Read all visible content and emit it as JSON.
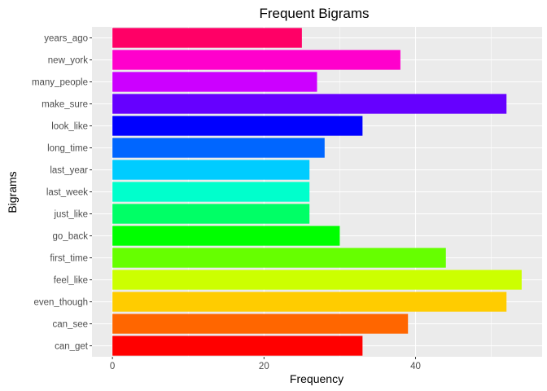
{
  "chart_data": {
    "type": "bar",
    "orientation": "horizontal",
    "title": "Frequent Bigrams",
    "xlabel": "Frequency",
    "ylabel": "Bigrams",
    "xlim": [
      -2.7,
      56.7
    ],
    "xticks": [
      0,
      20,
      40
    ],
    "xtick_labels": [
      "0",
      "20",
      "40"
    ],
    "grid": true,
    "legend": "none",
    "categories": [
      "can_get",
      "can_see",
      "even_though",
      "feel_like",
      "first_time",
      "go_back",
      "just_like",
      "last_week",
      "last_year",
      "long_time",
      "look_like",
      "make_sure",
      "many_people",
      "new_york",
      "years_ago"
    ],
    "values": [
      33,
      39,
      52,
      54,
      44,
      30,
      26,
      26,
      26,
      28,
      33,
      52,
      27,
      38,
      25
    ],
    "colors": [
      "#FF0000",
      "#FF6600",
      "#FFCC00",
      "#CCFF00",
      "#66FF00",
      "#00FF00",
      "#00FF66",
      "#00FFCC",
      "#00CCFF",
      "#0066FF",
      "#0000FF",
      "#6600FF",
      "#CC00FF",
      "#FF00CC",
      "#FF0066"
    ]
  }
}
